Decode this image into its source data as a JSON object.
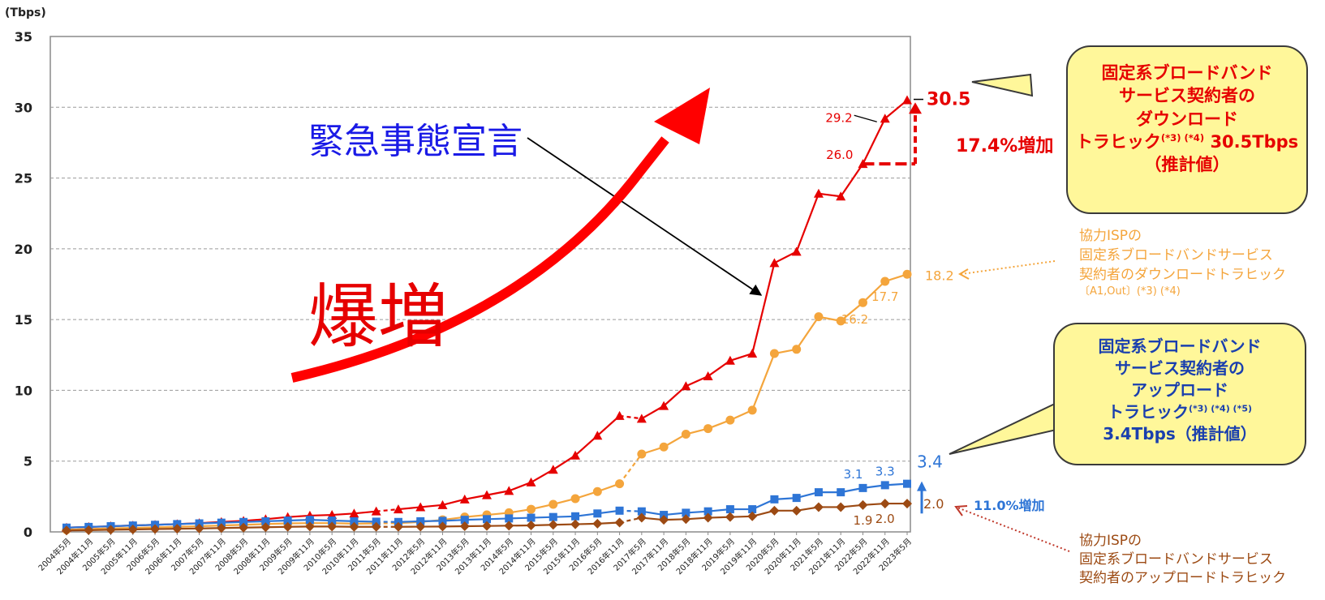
{
  "chart_data": {
    "type": "line",
    "ylabel": "(Tbps)",
    "ylim": [
      0,
      35
    ],
    "yticks": [
      0,
      5,
      10,
      15,
      20,
      25,
      30,
      35
    ],
    "grid": true,
    "categories": [
      "2004年5月",
      "2004年11月",
      "2005年5月",
      "2005年11月",
      "2006年5月",
      "2006年11月",
      "2007年5月",
      "2007年11月",
      "2008年5月",
      "2008年11月",
      "2009年5月",
      "2009年11月",
      "2010年5月",
      "2010年11月",
      "2011年5月",
      "2011年11月",
      "2012年5月",
      "2012年11月",
      "2013年5月",
      "2013年11月",
      "2014年5月",
      "2014年11月",
      "2015年5月",
      "2015年11月",
      "2016年5月",
      "2016年11月",
      "2017年5月",
      "2017年11月",
      "2018年5月",
      "2018年11月",
      "2019年5月",
      "2019年11月",
      "2020年5月",
      "2020年11月",
      "2021年5月",
      "2021年11月",
      "2022年5月",
      "2022年11月",
      "2023年5月"
    ],
    "series": [
      {
        "key": "down_total",
        "color": "#e60000",
        "marker": "triangle",
        "values": [
          0.3,
          0.35,
          0.4,
          0.45,
          0.5,
          0.55,
          0.62,
          0.7,
          0.78,
          0.9,
          1.05,
          1.15,
          1.2,
          1.3,
          1.45,
          1.6,
          1.75,
          1.9,
          2.3,
          2.6,
          2.9,
          3.5,
          4.4,
          5.4,
          6.8,
          8.2,
          8.0,
          8.9,
          10.3,
          11.0,
          12.1,
          12.6,
          19.0,
          19.8,
          23.9,
          23.7,
          26.0,
          29.2,
          30.5
        ]
      },
      {
        "key": "down_coop",
        "color": "#f4a53c",
        "marker": "circle",
        "values": [
          0.15,
          0.2,
          0.25,
          0.28,
          0.32,
          0.36,
          0.4,
          0.45,
          0.5,
          0.55,
          0.6,
          0.62,
          0.62,
          0.58,
          0.6,
          0.62,
          0.7,
          0.85,
          1.05,
          1.2,
          1.35,
          1.6,
          1.95,
          2.35,
          2.85,
          3.4,
          5.5,
          6.0,
          6.9,
          7.3,
          7.9,
          8.6,
          12.6,
          12.9,
          15.2,
          14.9,
          16.2,
          17.7,
          18.2
        ]
      },
      {
        "key": "up_total",
        "color": "#2e75d6",
        "marker": "square",
        "values": [
          0.3,
          0.35,
          0.4,
          0.45,
          0.5,
          0.55,
          0.6,
          0.65,
          0.7,
          0.75,
          0.8,
          0.85,
          0.8,
          0.75,
          0.72,
          0.7,
          0.75,
          0.78,
          0.85,
          0.9,
          0.95,
          1.0,
          1.05,
          1.1,
          1.3,
          1.5,
          1.45,
          1.2,
          1.35,
          1.45,
          1.6,
          1.6,
          2.3,
          2.4,
          2.8,
          2.8,
          3.1,
          3.3,
          3.4
        ]
      },
      {
        "key": "up_coop",
        "color": "#9c4a13",
        "marker": "diamond",
        "values": [
          0.1,
          0.12,
          0.15,
          0.17,
          0.2,
          0.22,
          0.24,
          0.27,
          0.3,
          0.33,
          0.36,
          0.38,
          0.38,
          0.36,
          0.36,
          0.36,
          0.37,
          0.38,
          0.4,
          0.42,
          0.44,
          0.46,
          0.5,
          0.54,
          0.58,
          0.66,
          1.0,
          0.85,
          0.9,
          1.0,
          1.05,
          1.1,
          1.5,
          1.5,
          1.75,
          1.75,
          1.9,
          2.0,
          2.0
        ]
      }
    ],
    "dashed_segments": [
      {
        "series": "down_total",
        "from": 14,
        "to": 15
      },
      {
        "series": "down_total",
        "from": 25,
        "to": 26
      },
      {
        "series": "down_coop",
        "from": 14,
        "to": 15
      },
      {
        "series": "down_coop",
        "from": 25,
        "to": 26
      },
      {
        "series": "up_total",
        "from": 14,
        "to": 15
      },
      {
        "series": "up_total",
        "from": 25,
        "to": 26
      },
      {
        "series": "up_coop",
        "from": 14,
        "to": 15
      },
      {
        "series": "up_coop",
        "from": 25,
        "to": 26
      }
    ],
    "data_labels": [
      {
        "text": "29.2",
        "color": "#e60000"
      },
      {
        "text": "26.0",
        "color": "#e60000"
      },
      {
        "text": "30.5",
        "color": "#e60000"
      },
      {
        "text": "17.7",
        "color": "#f4a53c"
      },
      {
        "text": "16.2",
        "color": "#f4a53c"
      },
      {
        "text": "18.2",
        "color": "#f4a53c"
      },
      {
        "text": "3.1",
        "color": "#2e75d6"
      },
      {
        "text": "3.3",
        "color": "#2e75d6"
      },
      {
        "text": "3.4",
        "color": "#2e75d6"
      },
      {
        "text": "1.9",
        "color": "#9c4a13"
      },
      {
        "text": "2.0",
        "color": "#9c4a13"
      },
      {
        "text": "2.0",
        "color": "#9c4a13"
      }
    ],
    "annotations": {
      "down_increase": "17.4%増加",
      "up_increase": "11.0%増加",
      "emergency": "緊急事態宣言",
      "boom": "爆増"
    },
    "legend_notes": {
      "down_coop": [
        "協力ISPの",
        "固定系ブロードバンドサービス",
        "契約者のダウンロードトラヒック",
        "〔A1,Out〕(*3) (*4)"
      ],
      "up_coop": [
        "協力ISPの",
        "固定系ブロードバンドサービス",
        "契約者のアップロードトラヒック"
      ]
    },
    "callouts": {
      "download": {
        "lines": [
          "固定系ブロードバンド",
          "サービス契約者の",
          "ダウンロード"
        ],
        "last_prefix": "トラヒック",
        "last_sup": "(*3) (*4)",
        "last_value": "30.5Tbps",
        "tail": "（推計値）"
      },
      "upload": {
        "lines": [
          "固定系ブロードバンド",
          "サービス契約者の",
          "アップロード"
        ],
        "last_prefix": "トラヒック",
        "last_sup": "(*3) (*4) (*5)",
        "tail": "3.4Tbps（推計値）"
      }
    },
    "colors": {
      "download": "#e60000",
      "coop_download": "#f4a53c",
      "upload": "#2e75d6",
      "coop_upload": "#9c4a13",
      "callout_fill": "#fff79a",
      "emergency_text": "#1a1ae6"
    }
  }
}
